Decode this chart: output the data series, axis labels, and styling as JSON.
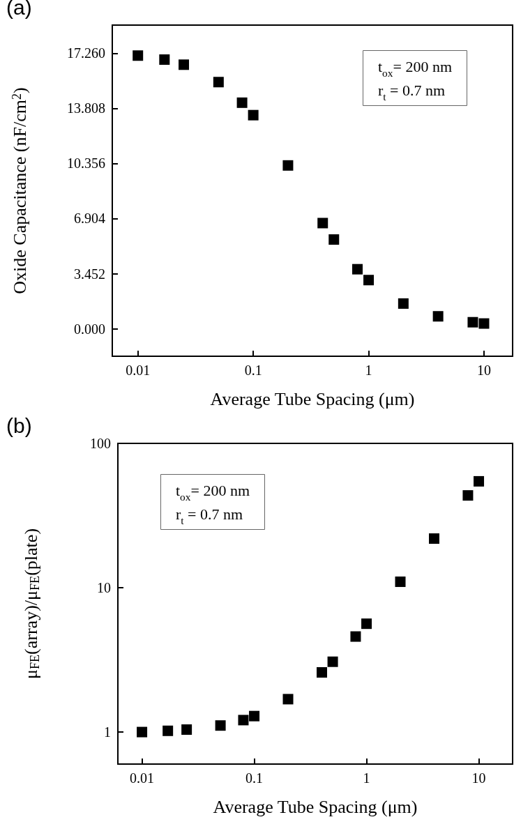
{
  "chart_data": [
    {
      "type": "scatter",
      "title": "(a)",
      "xlabel": "Average Tube Spacing (μm)",
      "ylabel": "Oxide Capacitance (nF/cm$^{2}$)",
      "log": "x",
      "marker": "square",
      "grid": false,
      "x": [
        0.01,
        0.017,
        0.025,
        0.05,
        0.08,
        0.1,
        0.2,
        0.4,
        0.5,
        0.8,
        1,
        2,
        4,
        8,
        10
      ],
      "values": [
        17.11,
        16.86,
        16.54,
        15.45,
        14.16,
        13.38,
        10.23,
        6.62,
        5.59,
        3.73,
        3.05,
        1.58,
        0.78,
        0.41,
        0.33
      ],
      "color": "#000000",
      "xlim": [
        0.006,
        17.7
      ],
      "xticks": [
        0.01,
        0.1,
        1,
        10
      ],
      "ylim": [
        -1.72,
        19.02
      ],
      "yticks": [
        {
          "value": 0,
          "label": "0.000"
        },
        3.452,
        6.904,
        10.356,
        13.808,
        {
          "value": 17.26,
          "label": "17.260"
        }
      ],
      "annotations": [
        "t$_{ox}$= 200 nm\nr$_{t}$ = 0.7 nm"
      ]
    },
    {
      "type": "scatter",
      "title": "(b)",
      "xlabel": "Average Tube Spacing (μm)",
      "ylabel": "μ$_{FE}$(array)/μ$_{FE}$(plate)",
      "log": "xy",
      "marker": "square",
      "grid": false,
      "x": [
        0.01,
        0.017,
        0.025,
        0.05,
        0.08,
        0.1,
        0.2,
        0.4,
        0.5,
        0.8,
        1,
        2,
        4,
        8,
        10
      ],
      "values": [
        1.0,
        1.02,
        1.04,
        1.11,
        1.21,
        1.29,
        1.69,
        2.59,
        3.07,
        4.59,
        5.63,
        11.0,
        21.9,
        43.6,
        54.6
      ],
      "color": "#000000",
      "xlim": [
        0.0061,
        20
      ],
      "xticks": [
        0.01,
        0.1,
        1,
        10
      ],
      "ylim": [
        0.6,
        100
      ],
      "yticks": [
        1,
        10,
        100
      ],
      "annotations": [
        "t$_{ox}$= 200 nm\nr$_{t}$ = 0.7 nm"
      ]
    }
  ]
}
